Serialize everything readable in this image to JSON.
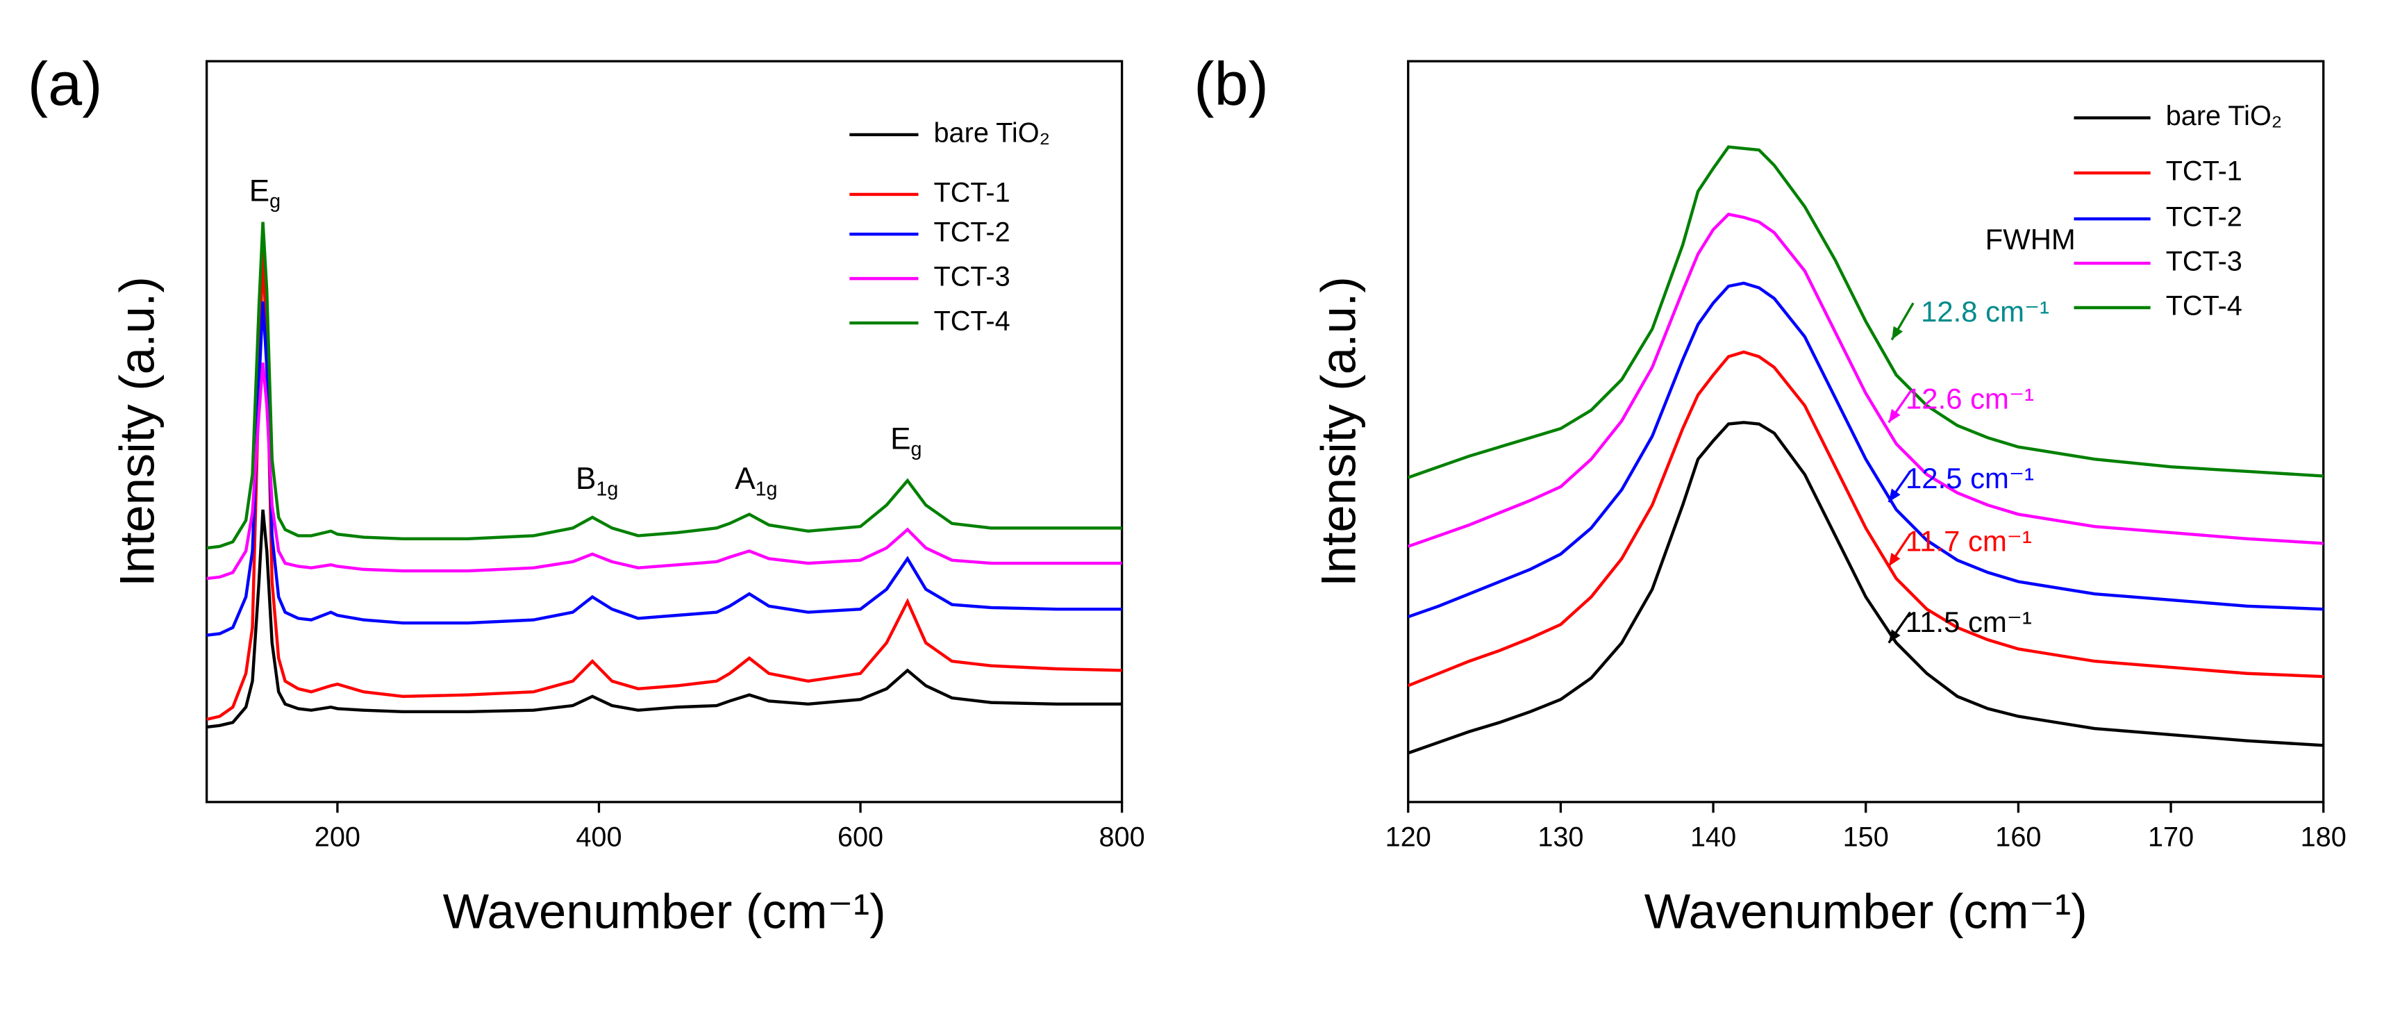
{
  "chart_data": [
    {
      "type": "line",
      "panel_label": "(a)",
      "xlabel": "Wavenumber (cm⁻¹)",
      "ylabel": "Intensity (a.u.)",
      "xlim": [
        100,
        800
      ],
      "xticks": [
        200,
        400,
        600,
        800
      ],
      "ylim": [
        0,
        484
      ],
      "x": [
        100,
        110,
        120,
        130,
        135,
        140,
        143,
        146,
        150,
        155,
        160,
        170,
        180,
        195,
        200,
        220,
        250,
        300,
        350,
        380,
        395,
        410,
        430,
        460,
        490,
        500,
        515,
        530,
        560,
        600,
        620,
        636,
        650,
        670,
        700,
        750,
        800
      ],
      "series": [
        {
          "name": "bare TiO₂",
          "color": "#000000",
          "values": [
            49,
            50,
            52,
            62,
            79,
            144,
            191,
            164,
            104,
            72,
            64,
            61,
            60,
            62,
            61,
            60,
            59,
            59,
            60,
            63,
            69,
            63,
            60,
            62,
            63,
            66,
            70,
            66,
            64,
            67,
            74,
            86,
            76,
            68,
            65,
            64,
            64
          ]
        },
        {
          "name": "TCT-1",
          "color": "#ff0000",
          "values": [
            54,
            56,
            62,
            84,
            114,
            274,
            364,
            294,
            144,
            94,
            79,
            74,
            72,
            76,
            77,
            72,
            69,
            70,
            72,
            79,
            92,
            79,
            74,
            76,
            79,
            84,
            94,
            84,
            79,
            84,
            104,
            131,
            104,
            92,
            89,
            87,
            86
          ]
        },
        {
          "name": "TCT-2",
          "color": "#0000ff",
          "values": [
            109,
            110,
            114,
            134,
            164,
            274,
            327,
            284,
            174,
            134,
            124,
            120,
            119,
            124,
            122,
            119,
            117,
            117,
            119,
            124,
            134,
            126,
            120,
            122,
            124,
            128,
            136,
            128,
            124,
            126,
            139,
            159,
            139,
            129,
            127,
            126,
            126
          ]
        },
        {
          "name": "TCT-3",
          "color": "#ff00ff",
          "values": [
            146,
            147,
            150,
            164,
            189,
            254,
            287,
            259,
            194,
            164,
            156,
            154,
            153,
            155,
            154,
            152,
            151,
            151,
            153,
            157,
            162,
            157,
            153,
            155,
            157,
            160,
            164,
            159,
            156,
            158,
            166,
            178,
            166,
            158,
            156,
            156,
            156
          ]
        },
        {
          "name": "TCT-4",
          "color": "#008000",
          "values": [
            166,
            167,
            170,
            184,
            214,
            324,
            379,
            334,
            224,
            186,
            178,
            174,
            174,
            177,
            175,
            173,
            172,
            172,
            174,
            179,
            186,
            179,
            174,
            176,
            179,
            182,
            188,
            181,
            177,
            180,
            194,
            210,
            194,
            182,
            179,
            179,
            179
          ]
        }
      ],
      "annotations": [
        {
          "text": "E",
          "sub": "g"
        },
        {
          "text": "B",
          "sub": "1g"
        },
        {
          "text": "A",
          "sub": "1g"
        },
        {
          "text": "E",
          "sub": "g"
        }
      ]
    },
    {
      "type": "line",
      "panel_label": "(b)",
      "xlabel": "Wavenumber (cm⁻¹)",
      "ylabel": "Intensity (a.u.)",
      "xlim": [
        120,
        180
      ],
      "xticks": [
        120,
        130,
        140,
        150,
        160,
        170,
        180
      ],
      "ylim": [
        0,
        484
      ],
      "x": [
        120,
        122,
        124,
        126,
        128,
        130,
        132,
        134,
        136,
        138,
        139,
        140,
        141,
        142,
        143,
        144,
        146,
        148,
        150,
        152,
        154,
        156,
        158,
        160,
        165,
        170,
        175,
        180
      ],
      "series": [
        {
          "name": "bare TiO₂",
          "color": "#000000",
          "values": [
            32,
            39,
            46,
            52,
            59,
            67,
            81,
            104,
            139,
            194,
            224,
            236,
            247,
            248,
            247,
            241,
            214,
            174,
            134,
            104,
            84,
            69,
            61,
            56,
            48,
            44,
            40,
            37
          ]
        },
        {
          "name": "TCT-1",
          "color": "#ff0000",
          "values": [
            76,
            84,
            92,
            99,
            107,
            116,
            134,
            159,
            194,
            244,
            266,
            279,
            291,
            294,
            291,
            284,
            259,
            219,
            179,
            146,
            126,
            114,
            106,
            100,
            92,
            88,
            84,
            82
          ]
        },
        {
          "name": "TCT-2",
          "color": "#0000ff",
          "values": [
            121,
            128,
            136,
            144,
            152,
            162,
            179,
            204,
            239,
            289,
            312,
            326,
            337,
            339,
            336,
            329,
            304,
            264,
            224,
            191,
            171,
            158,
            150,
            144,
            136,
            132,
            128,
            126
          ]
        },
        {
          "name": "TCT-3",
          "color": "#ff00ff",
          "values": [
            167,
            174,
            181,
            189,
            197,
            206,
            224,
            249,
            284,
            334,
            358,
            374,
            384,
            382,
            379,
            372,
            347,
            307,
            267,
            234,
            214,
            202,
            194,
            188,
            180,
            176,
            172,
            169
          ]
        },
        {
          "name": "TCT-4",
          "color": "#008000",
          "values": [
            212,
            219,
            226,
            232,
            238,
            244,
            256,
            276,
            309,
            364,
            399,
            414,
            428,
            427,
            426,
            416,
            389,
            354,
            314,
            279,
            259,
            246,
            238,
            232,
            224,
            219,
            216,
            213
          ]
        }
      ],
      "annotations": [
        {
          "text": "FWHM",
          "color": "#000000"
        },
        {
          "text": "12.8 cm⁻¹",
          "color": "#008b8b",
          "arrow_color": "#008000"
        },
        {
          "text": "12.6 cm⁻¹",
          "color": "#ff00ff",
          "arrow_color": "#ff00ff"
        },
        {
          "text": "12.5 cm⁻¹",
          "color": "#0000ff",
          "arrow_color": "#0000ff"
        },
        {
          "text": "11.7 cm⁻¹",
          "color": "#ff0000",
          "arrow_color": "#ff0000"
        },
        {
          "text": "11.5 cm⁻¹",
          "color": "#000000",
          "arrow_color": "#000000"
        }
      ]
    }
  ]
}
